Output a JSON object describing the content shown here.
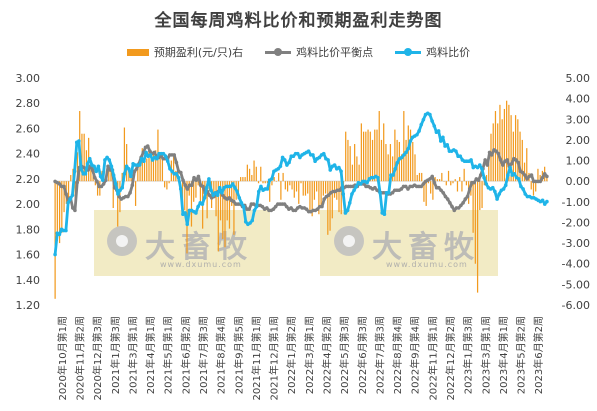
{
  "title": "全国每周鸡料比价和预期盈利走势图",
  "legend": {
    "bar": "预期盈利(元/只)右",
    "gray": "鸡料比价平衡点",
    "blue": "鸡料比价"
  },
  "watermark": {
    "text": "大畜牧",
    "url": "www.dxumu.com"
  },
  "colors": {
    "bar": "#f29a1e",
    "gray": "#808080",
    "blue": "#1fb4e8",
    "axis_text": "#404040"
  },
  "chart_data": {
    "type": "bar",
    "title": "全国每周鸡料比价和预期盈利走势图",
    "left_axis": {
      "min": 1.2,
      "max": 3.0,
      "ticks": [
        "1.20",
        "1.40",
        "1.60",
        "1.80",
        "2.00",
        "2.20",
        "2.40",
        "2.60",
        "2.80",
        "3.00"
      ]
    },
    "right_axis": {
      "min": -6.0,
      "max": 5.0,
      "ticks": [
        "-6.00",
        "-5.00",
        "-4.00",
        "-3.00",
        "-2.00",
        "-1.00",
        "0.00",
        "1.00",
        "2.00",
        "3.00",
        "4.00",
        "5.00"
      ]
    },
    "x_labels": [
      "2020年10月第1周",
      "2020年11月第2周",
      "2020年12月第3周",
      "2021年1月第3周",
      "2021年3月第1周",
      "2021年4月第1周",
      "2021年5月第1周",
      "2021年6月第2周",
      "2021年7月第3周",
      "2021年8月第4周",
      "2021年9月第5周",
      "2021年11月第1周",
      "2021年12月第1周",
      "2022年1月第2周",
      "2022年3月第1周",
      "2022年4月第2周",
      "2022年5月第3周",
      "2022年6月第3周",
      "2022年7月第3周",
      "2022年8月第4周",
      "2022年9月第4周",
      "2022年11月第1周",
      "2022年12月第2周",
      "2023年1月第3周",
      "2023年3月第1周",
      "2023年4月第1周",
      "2023年5月第2周",
      "2023年6月第2周"
    ],
    "series": [
      {
        "name": "预期盈利(元/只)右",
        "type": "bar",
        "axis": "right",
        "values": [
          -5.7,
          -2.9,
          -3.0,
          -2.5,
          -1.5,
          -1.1,
          -0.8,
          0.3,
          0.6,
          -1.1,
          1.4,
          3.4,
          2.3,
          2.3,
          1.5,
          2.1,
          1.0,
          0.7,
          -0.2,
          -0.7,
          -0.7,
          0.5,
          -0.2,
          0.5,
          0.5,
          0.6,
          -1.3,
          -0.4,
          -2.2,
          -1.5,
          0.4,
          2.6,
          1.8,
          0.6,
          0.4,
          0.5,
          -1.2,
          0.7,
          0.8,
          1.6,
          1.2,
          1.1,
          1.7,
          1.1,
          1.4,
          1.5,
          2.5,
          1.3,
          1.4,
          -0.3,
          -0.4,
          -0.1,
          1.0,
          1.2,
          0.5,
          0.5,
          -0.5,
          -1.2,
          -1.4,
          -3.5,
          -0.7,
          -2.2,
          -1.0,
          -0.8,
          -0.2,
          -1.1,
          -2.3,
          -0.7,
          -1.8,
          -0.5,
          -1.3,
          -0.6,
          -1.7,
          -3.4,
          -1.9,
          -2.8,
          -3.2,
          -1.9,
          -2.3,
          -1.2,
          -2.6,
          -0.9,
          -0.6,
          0.2,
          0.2,
          0.2,
          0.8,
          0.6,
          0.3,
          1.0,
          0.7,
          -0.1,
          0.7,
          -0.1,
          -0.1,
          -0.1,
          -1.0,
          -0.2,
          0.2,
          0.0,
          0.4,
          -0.9,
          0.4,
          -0.4,
          -0.5,
          -0.2,
          -0.4,
          -0.8,
          -0.5,
          -1.1,
          -0.1,
          -0.7,
          -0.7,
          -0.6,
          -1.5,
          -1.7,
          -0.9,
          -0.5,
          -1.6,
          -1.2,
          -0.7,
          -0.6,
          -2.6,
          -2.4,
          -1.8,
          -0.8,
          -0.9,
          -1.5,
          -1.6,
          -0.6,
          2.4,
          2.0,
          1.7,
          0.8,
          1.8,
          1.2,
          0.8,
          2.8,
          2.4,
          2.4,
          2.5,
          2.4,
          2.0,
          2.5,
          2.5,
          3.4,
          2.0,
          2.8,
          1.8,
          1.3,
          1.8,
          1.2,
          2.5,
          2.0,
          1.9,
          1.3,
          3.4,
          2.0,
          2.7,
          2.5,
          1.9,
          1.3,
          0.3,
          0.4,
          0.4,
          -1.0,
          -1.2,
          -0.1,
          -0.6,
          -0.9,
          0.2,
          0.1,
          0.1,
          0.4,
          0.0,
          -0.2,
          0.5,
          -0.2,
          -0.1,
          0.1,
          -0.5,
          0.2,
          -0.5,
          0.6,
          -0.2,
          -1.1,
          -0.7,
          -2.5,
          -4.0,
          -5.4,
          -1.4,
          -1.3,
          -0.2,
          0.3,
          1.4,
          2.3,
          2.8,
          3.4,
          2.8,
          3.7,
          3.0,
          3.5,
          3.9,
          3.7,
          3.2,
          2.4,
          3.2,
          3.0,
          2.4,
          2.0,
          0.9,
          1.6,
          0.4,
          -0.4,
          -0.7,
          -0.5,
          0.6,
          0.3,
          0.5,
          0.7,
          0.3
        ]
      },
      {
        "name": "鸡料比价平衡点",
        "type": "line",
        "axis": "left",
        "values": [
          2.18,
          2.17,
          2.16,
          2.14,
          2.14,
          2.08,
          2.02,
          2.05,
          1.97,
          1.95,
          2.17,
          2.29,
          2.3,
          2.29,
          2.28,
          2.27,
          2.3,
          2.27,
          2.21,
          2.18,
          2.14,
          2.14,
          2.16,
          2.19,
          2.3,
          2.27,
          2.27,
          2.13,
          2.11,
          2.06,
          2.04,
          2.05,
          2.06,
          2.06,
          2.09,
          2.15,
          2.26,
          2.28,
          2.32,
          2.37,
          2.41,
          2.45,
          2.46,
          2.42,
          2.4,
          2.41,
          2.38,
          2.37,
          2.38,
          2.36,
          2.36,
          2.36,
          2.39,
          2.39,
          2.39,
          2.33,
          2.26,
          2.25,
          2.19,
          2.15,
          2.12,
          2.15,
          2.15,
          2.21,
          2.19,
          2.22,
          2.15,
          2.14,
          2.09,
          2.1,
          2.07,
          2.05,
          2.06,
          2.09,
          2.1,
          2.1,
          2.07,
          2.05,
          2.04,
          2.05,
          2.03,
          2.02,
          2.0,
          2.0,
          2.0,
          1.98,
          1.99,
          1.96,
          1.96,
          2.0,
          2.0,
          1.99,
          1.99,
          1.99,
          1.98,
          1.96,
          1.97,
          1.95,
          1.95,
          1.96,
          1.98,
          2.0,
          2.0,
          2.0,
          2.0,
          1.98,
          1.96,
          1.97,
          1.95,
          1.95,
          1.97,
          1.98,
          1.97,
          1.97,
          1.96,
          1.94,
          1.94,
          1.95,
          1.95,
          1.96,
          1.98,
          1.98,
          2.04,
          2.06,
          2.07,
          2.09,
          2.1,
          2.1,
          2.11,
          2.11,
          2.13,
          2.13,
          2.14,
          2.14,
          2.14,
          2.14,
          2.15,
          2.14,
          2.16,
          2.16,
          2.16,
          2.14,
          2.14,
          2.13,
          2.12,
          2.13,
          2.11,
          2.1,
          2.09,
          2.09,
          2.09,
          2.08,
          2.08,
          2.09,
          2.11,
          2.11,
          2.11,
          2.12,
          2.14,
          2.14,
          2.12,
          2.14,
          2.14,
          2.15,
          2.14,
          2.14,
          2.14,
          2.16,
          2.18,
          2.19,
          2.2,
          2.22,
          2.17,
          2.13,
          2.13,
          2.11,
          2.09,
          2.06,
          2.04,
          2.01,
          1.98,
          1.95,
          1.97,
          1.97,
          1.99,
          2.01,
          2.04,
          2.06,
          2.12,
          2.17,
          2.17,
          2.2,
          2.19,
          2.23,
          2.28,
          2.35,
          2.31,
          2.41,
          2.39,
          2.43,
          2.42,
          2.4,
          2.35,
          2.31,
          2.34,
          2.35,
          2.3,
          2.32,
          2.36,
          2.35,
          2.33,
          2.26,
          2.25,
          2.23,
          2.2,
          2.22,
          2.23,
          2.18,
          2.18,
          2.18,
          2.18,
          2.21,
          2.24,
          2.22
        ]
      },
      {
        "name": "鸡料比价",
        "type": "line",
        "axis": "left",
        "values": [
          1.6,
          1.77,
          1.76,
          1.8,
          1.79,
          1.79,
          2.01,
          2.04,
          2.07,
          2.26,
          2.49,
          2.5,
          2.28,
          2.24,
          2.24,
          2.32,
          2.36,
          2.31,
          2.3,
          2.26,
          2.3,
          2.22,
          2.19,
          2.35,
          2.37,
          2.35,
          2.3,
          2.23,
          2.16,
          2.08,
          2.11,
          2.13,
          2.24,
          2.3,
          2.28,
          2.22,
          2.32,
          2.31,
          2.31,
          2.31,
          2.36,
          2.34,
          2.41,
          2.38,
          2.39,
          2.35,
          2.37,
          2.36,
          2.4,
          2.4,
          2.4,
          2.38,
          2.34,
          2.28,
          2.26,
          2.24,
          2.24,
          2.21,
          2.12,
          1.92,
          1.93,
          1.84,
          1.95,
          1.95,
          1.94,
          1.93,
          1.98,
          2.01,
          2.0,
          2.05,
          2.13,
          2.2,
          2.11,
          2.07,
          2.09,
          2.07,
          2.13,
          2.09,
          2.13,
          2.14,
          2.14,
          2.14,
          2.16,
          2.13,
          2.1,
          2.05,
          2.01,
          1.98,
          1.86,
          1.84,
          1.85,
          1.87,
          1.95,
          1.98,
          2.1,
          2.14,
          2.11,
          2.12,
          2.12,
          2.19,
          2.2,
          2.26,
          2.27,
          2.28,
          2.3,
          2.37,
          2.35,
          2.31,
          2.33,
          2.38,
          2.38,
          2.4,
          2.4,
          2.37,
          2.39,
          2.4,
          2.41,
          2.42,
          2.39,
          2.39,
          2.34,
          2.36,
          2.37,
          2.39,
          2.4,
          2.36,
          2.35,
          2.27,
          2.3,
          2.31,
          2.28,
          2.29,
          2.26,
          2.08,
          1.93,
          1.95,
          2.01,
          2.08,
          2.11,
          2.14,
          2.17,
          2.16,
          2.18,
          2.18,
          2.17,
          2.2,
          2.21,
          2.21,
          2.22,
          2.21,
          2.09,
          1.93,
          1.92,
          2.09,
          2.09,
          2.23,
          2.23,
          2.28,
          2.33,
          2.36,
          2.37,
          2.39,
          2.41,
          2.44,
          2.5,
          2.53,
          2.54,
          2.55,
          2.58,
          2.63,
          2.67,
          2.71,
          2.72,
          2.71,
          2.66,
          2.62,
          2.57,
          2.58,
          2.5,
          2.53,
          2.46,
          2.47,
          2.42,
          2.42,
          2.43,
          2.42,
          2.38,
          2.38,
          2.35,
          2.34,
          2.34,
          2.34,
          2.35,
          2.29,
          2.3,
          2.29,
          2.31,
          2.28,
          2.21,
          2.16,
          2.13,
          2.12,
          2.13,
          2.1,
          2.04,
          2.08,
          2.11,
          2.12,
          2.15,
          2.23,
          2.29,
          2.23,
          2.24,
          2.21,
          2.2,
          2.14,
          2.12,
          2.08,
          2.06,
          2.06,
          2.05,
          2.05,
          2.04,
          2.03,
          2.02,
          2.03,
          2.0,
          2.02
        ]
      }
    ]
  }
}
